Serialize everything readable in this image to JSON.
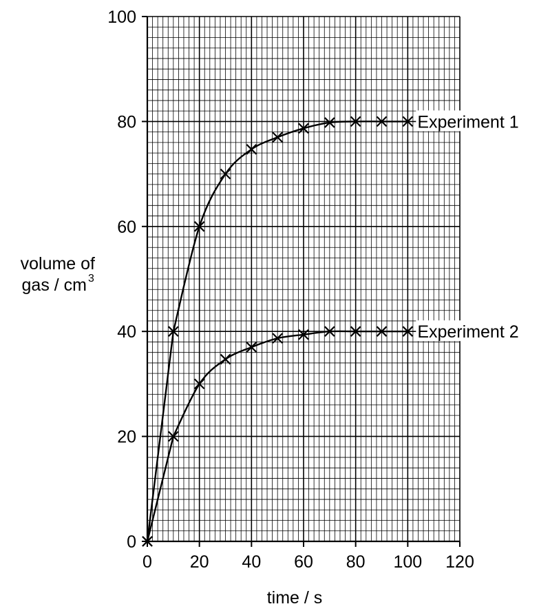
{
  "chart_data": {
    "type": "line",
    "title": "",
    "xlabel": "time / s",
    "ylabel_lines": [
      "volume of",
      "gas / cm",
      "3"
    ],
    "xlim": [
      0,
      120
    ],
    "ylim": [
      0,
      100
    ],
    "x_ticks": [
      0,
      20,
      40,
      60,
      80,
      100,
      120
    ],
    "y_ticks": [
      0,
      20,
      40,
      60,
      80,
      100
    ],
    "grid": true,
    "grid_minor_step_x": 2,
    "grid_minor_step_y": 2,
    "grid_major_step_x": 20,
    "grid_major_step_y": 20,
    "marker": "x",
    "series": [
      {
        "name": "Experiment 1",
        "x": [
          0,
          10,
          20,
          30,
          40,
          50,
          60,
          70,
          80,
          90,
          100
        ],
        "y": [
          0,
          40,
          60,
          70,
          74.7,
          77,
          78.7,
          79.8,
          80,
          80,
          80
        ]
      },
      {
        "name": "Experiment 2",
        "x": [
          0,
          10,
          20,
          30,
          40,
          50,
          60,
          70,
          80,
          90,
          100
        ],
        "y": [
          0,
          20,
          30,
          34.7,
          37,
          38.7,
          39.4,
          40,
          40,
          40,
          40
        ]
      }
    ]
  }
}
